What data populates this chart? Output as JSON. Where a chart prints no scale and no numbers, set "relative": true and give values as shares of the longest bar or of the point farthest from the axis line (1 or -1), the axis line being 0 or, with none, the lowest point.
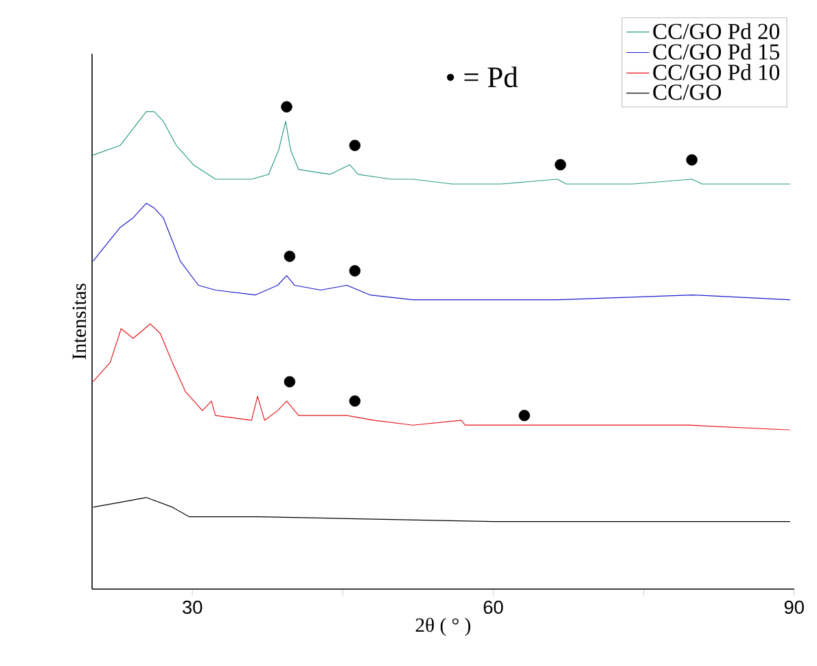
{
  "chart_data": {
    "type": "line",
    "xlabel": "2θ ( ° )",
    "ylabel": "Intensitas",
    "relative": true,
    "xlim": [
      20,
      90
    ],
    "xticks": [
      30,
      {
        "value": 45,
        "label": null
      },
      60,
      {
        "value": 75,
        "label": null
      },
      90
    ],
    "legend": "top right",
    "grid": false,
    "annotations": [
      "• = Pd"
    ],
    "series": [
      {
        "name": "CC/GO Pd 20",
        "color": "#2a9d86",
        "x": [
          20.1,
          22.8,
          25.4,
          26.2,
          27.1,
          28.4,
          30.1,
          32.3,
          35.9,
          37.6,
          38.6,
          39.3,
          39.8,
          40.6,
          43.7,
          45.7,
          46.5,
          49.8,
          52.0,
          55.9,
          60.8,
          66.4,
          67.3,
          73.9,
          79.8,
          80.8,
          89.6
        ],
        "values": [
          0.9,
          0.92,
          0.99,
          0.99,
          0.97,
          0.92,
          0.88,
          0.85,
          0.85,
          0.86,
          0.91,
          0.97,
          0.91,
          0.87,
          0.86,
          0.88,
          0.86,
          0.85,
          0.85,
          0.84,
          0.84,
          0.85,
          0.84,
          0.84,
          0.85,
          0.84,
          0.84
        ]
      },
      {
        "name": "CC/GO Pd 15",
        "color": "#1a1acc",
        "x": [
          20.1,
          22.8,
          24.1,
          25.4,
          26.2,
          27.1,
          28.8,
          30.6,
          32.3,
          36.3,
          38.5,
          39.4,
          40.2,
          42.8,
          45.4,
          47.7,
          52.0,
          55.9,
          66.4,
          79.9,
          89.6
        ],
        "values": [
          0.68,
          0.75,
          0.77,
          0.8,
          0.79,
          0.77,
          0.68,
          0.63,
          0.62,
          0.61,
          0.63,
          0.65,
          0.63,
          0.62,
          0.63,
          0.61,
          0.6,
          0.6,
          0.6,
          0.61,
          0.6
        ]
      },
      {
        "name": "CC/GO Pd 10",
        "color": "#e8141a",
        "x": [
          20.1,
          21.8,
          22.9,
          24.1,
          25.8,
          26.8,
          28.0,
          29.3,
          31.0,
          31.9,
          32.3,
          35.9,
          36.5,
          37.2,
          38.5,
          39.4,
          40.6,
          45.4,
          48.1,
          52.0,
          56.8,
          57.2,
          62.9,
          79.5,
          89.6
        ],
        "values": [
          0.43,
          0.47,
          0.54,
          0.52,
          0.55,
          0.53,
          0.47,
          0.41,
          0.37,
          0.39,
          0.36,
          0.35,
          0.4,
          0.35,
          0.37,
          0.39,
          0.36,
          0.36,
          0.35,
          0.34,
          0.35,
          0.34,
          0.34,
          0.34,
          0.33
        ]
      },
      {
        "name": "CC/GO",
        "color": "#000000",
        "x": [
          20.1,
          22.8,
          25.4,
          26.7,
          28.0,
          29.7,
          32.3,
          36.6,
          60.0,
          89.6
        ],
        "values": [
          0.17,
          0.18,
          0.19,
          0.18,
          0.17,
          0.15,
          0.15,
          0.15,
          0.14,
          0.14
        ]
      },
      {
        "type": "scatter",
        "marker": "circle",
        "color": "#000000",
        "x": [
          39.4,
          46.2,
          39.7,
          46.2,
          66.7,
          79.8,
          39.7,
          46.2,
          63.1
        ],
        "values": [
          1.0,
          0.92,
          0.69,
          0.66,
          0.88,
          0.89,
          0.43,
          0.39,
          0.36
        ]
      }
    ]
  }
}
